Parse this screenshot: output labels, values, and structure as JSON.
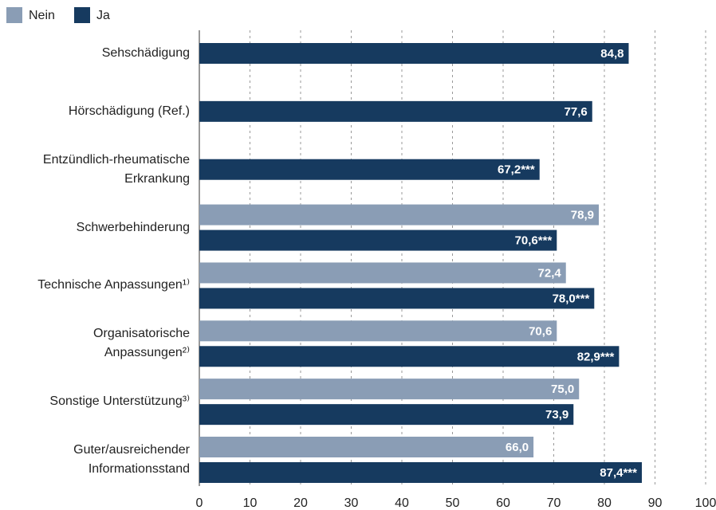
{
  "chart_data": {
    "type": "hbar",
    "categories": [
      "Sehschädigung",
      "Hörschädigung (Ref.)",
      "Entzündlich-rheumatische\nErkrankung",
      "Schwerbehinderung",
      "Technische Anpassungen¹⁾",
      "Organisatorische\nAnpassungen²⁾",
      "Sonstige Unterstützung³⁾",
      "Guter/ausreichender\nInformationsstand"
    ],
    "series": [
      {
        "name": "Nein",
        "color": "#8a9db5",
        "values": [
          null,
          null,
          null,
          78.9,
          72.4,
          70.6,
          75.0,
          66.0
        ],
        "value_labels": [
          null,
          null,
          null,
          "78,9",
          "72,4",
          "70,6",
          "75,0",
          "66,0"
        ]
      },
      {
        "name": "Ja",
        "color": "#163a5f",
        "values": [
          84.8,
          77.6,
          67.2,
          70.6,
          78.0,
          82.9,
          73.9,
          87.4
        ],
        "value_labels": [
          "84,8",
          "77,6",
          "67,2***",
          "70,6***",
          "78,0***",
          "82,9***",
          "73,9",
          "87,4***"
        ]
      }
    ],
    "xlim": [
      0,
      100
    ],
    "xticks": [
      0,
      10,
      20,
      30,
      40,
      50,
      60,
      70,
      80,
      90,
      100
    ],
    "grid": true
  }
}
